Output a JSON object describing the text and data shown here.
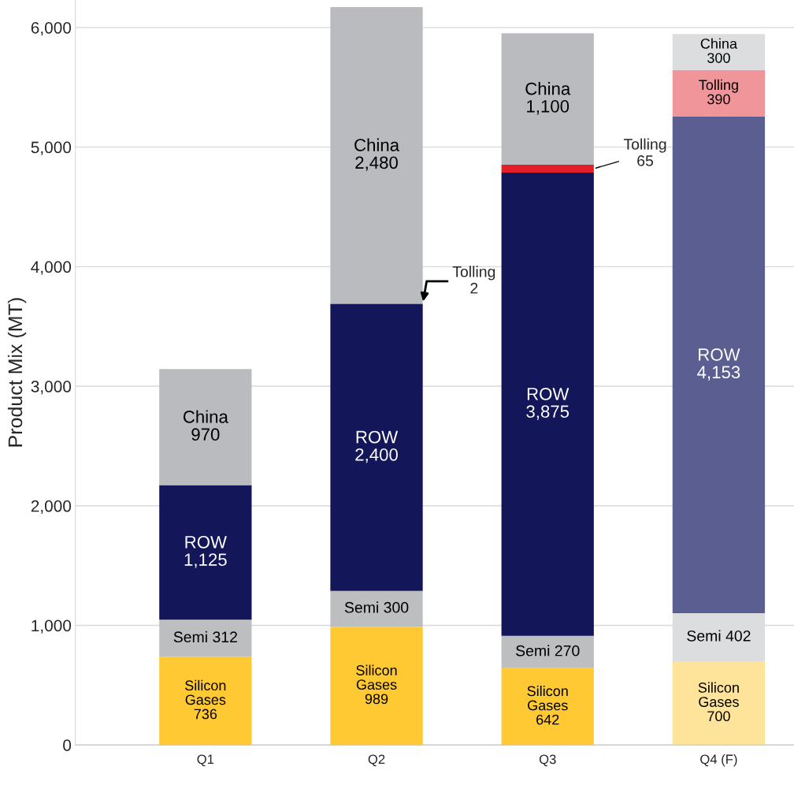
{
  "chart_data": {
    "type": "bar",
    "stacked": true,
    "ylabel": "Product Mix (MT)",
    "categories": [
      "Q1",
      "Q2",
      "Q3",
      "Q4 (F)"
    ],
    "ylim": [
      0,
      6230
    ],
    "yticks": [
      0,
      {
        "value": 1000,
        "label": "1,000"
      },
      {
        "value": 2000,
        "label": "2,000"
      },
      {
        "value": 3000,
        "label": "3,000"
      },
      {
        "value": 4000,
        "label": "4,000"
      },
      {
        "value": 5000,
        "label": "5,000"
      },
      {
        "value": 6000,
        "label": "6,000"
      }
    ],
    "grid": "y",
    "legend": false,
    "series": [
      {
        "values": [
          736,
          989,
          642,
          700
        ],
        "colors": [
          "#ffc933",
          "#ffc933",
          "#ffc933",
          "#fee49a"
        ],
        "value_labels": [
          "Silicon\nGases\n736",
          "Silicon\nGases\n989",
          "Silicon\nGases\n642",
          "Silicon\nGases\n700"
        ]
      },
      {
        "values": [
          312,
          300,
          270,
          402
        ],
        "colors": [
          "#bcbec0",
          "#bcbec0",
          "#bcbec0",
          "#dcdddf"
        ],
        "value_labels": [
          "Semi 312",
          "Semi 300",
          "Semi 270",
          "Semi 402"
        ]
      },
      {
        "values": [
          1125,
          2400,
          3875,
          4153
        ],
        "colors": [
          "#14165a",
          "#14165a",
          "#14165a",
          "#5a5e91"
        ],
        "value_labels": [
          "ROW\n1,125",
          "ROW\n2,400",
          "ROW\n3,875",
          "ROW\n4,153"
        ]
      },
      {
        "values": [
          null,
          2,
          65,
          390
        ],
        "colors": [
          "#e32027",
          "#e32027",
          "#e32027",
          "#f0959a"
        ],
        "value_labels": [
          null,
          "Tolling\n2",
          "Tolling\n65",
          "Tolling\n390"
        ]
      },
      {
        "values": [
          970,
          2480,
          1100,
          300
        ],
        "colors": [
          "#b9bbbe",
          "#b9bbbe",
          "#b9bbbe",
          "#dcdddf"
        ],
        "value_labels": [
          "China\n970",
          "China\n2,480",
          "China\n1,100",
          "China\n300"
        ]
      }
    ]
  }
}
